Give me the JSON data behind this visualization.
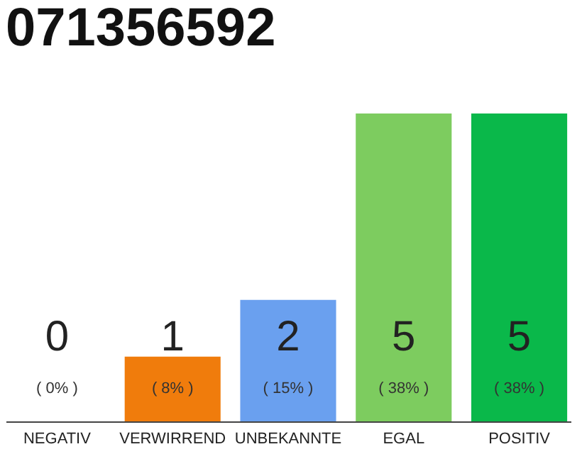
{
  "chart_data": {
    "type": "bar",
    "title": "071356592",
    "categories": [
      "NEGATIV",
      "VERWIRREND",
      "UNBEKANNTE",
      "EGAL",
      "POSITIV"
    ],
    "values": [
      0,
      8,
      15,
      38,
      38
    ],
    "colors": [
      "#555555",
      "#f07c0c",
      "#6aa0ef",
      "#7dcc5f",
      "#0ab84a"
    ],
    "value_labels": [
      "( 0% )",
      "( 8% )",
      "( 15% )",
      "( 38% )",
      "( 38% )"
    ],
    "annotations": [
      "0",
      "1",
      "2",
      "5",
      "5"
    ],
    "grid": false
  }
}
